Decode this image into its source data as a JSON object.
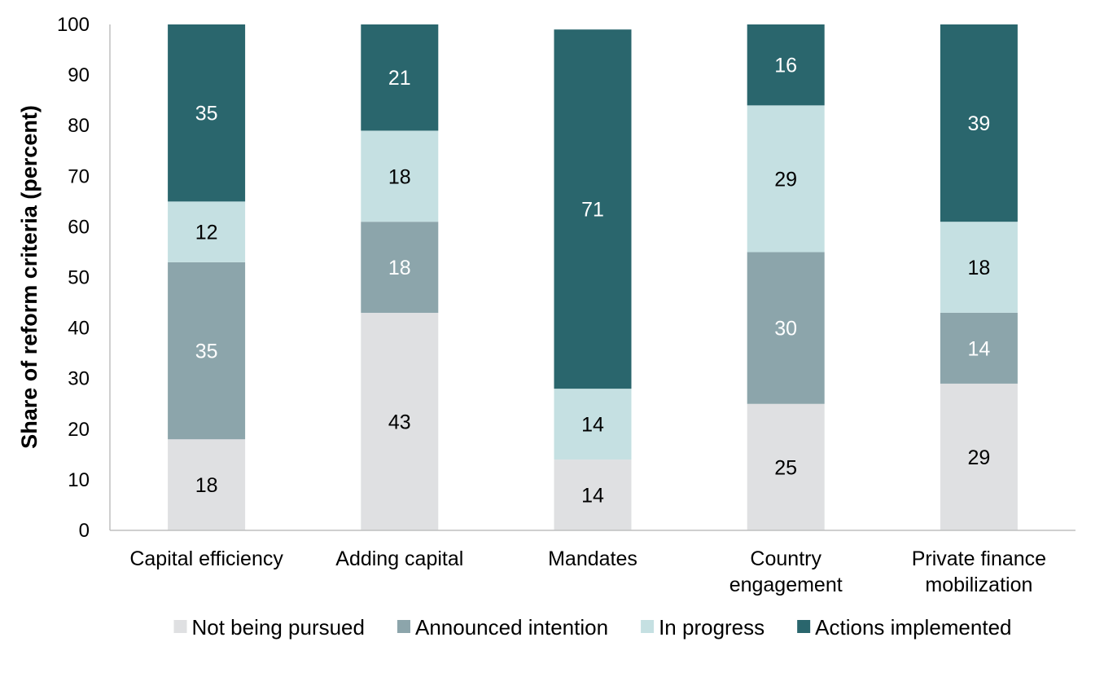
{
  "chart_data": {
    "type": "bar",
    "stacked": true,
    "title": "",
    "xlabel": "",
    "ylabel": "Share of reform criteria (percent)",
    "ylim": [
      0,
      100
    ],
    "yticks": [
      0,
      10,
      20,
      30,
      40,
      50,
      60,
      70,
      80,
      90,
      100
    ],
    "grid": false,
    "legend_position": "bottom",
    "categories": [
      [
        "Capital efficiency"
      ],
      [
        "Adding capital"
      ],
      [
        "Mandates"
      ],
      [
        "Country",
        "engagement"
      ],
      [
        "Private finance",
        "mobilization"
      ]
    ],
    "series": [
      {
        "name": "Not being pursued",
        "color": "#dfe0e2",
        "label_color": "#000000",
        "values": [
          18,
          43,
          14,
          25,
          29
        ]
      },
      {
        "name": "Announced intention",
        "color": "#8ca5ab",
        "label_color": "#ffffff",
        "values": [
          35,
          18,
          0,
          30,
          14
        ]
      },
      {
        "name": "In progress",
        "color": "#c5e0e2",
        "label_color": "#000000",
        "values": [
          12,
          18,
          14,
          29,
          18
        ]
      },
      {
        "name": "Actions implemented",
        "color": "#2a666d",
        "label_color": "#ffffff",
        "values": [
          35,
          21,
          71,
          16,
          39
        ]
      }
    ]
  }
}
